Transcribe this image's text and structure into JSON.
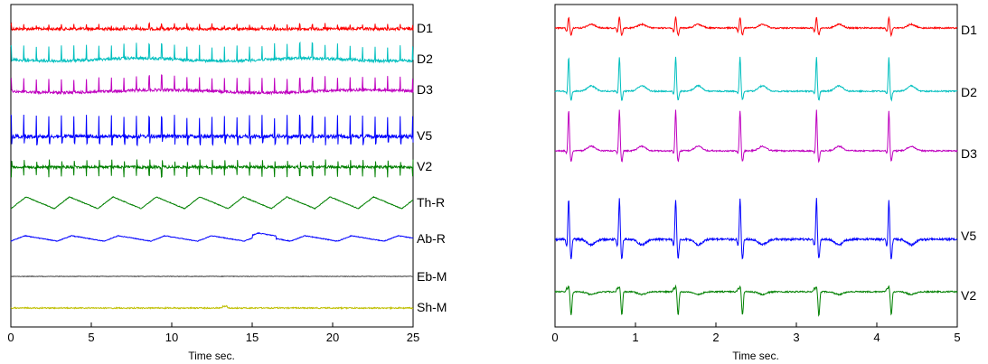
{
  "chart_data": [
    {
      "type": "line",
      "xlabel": "Time sec.",
      "xlim": [
        0,
        25
      ],
      "xticks": [
        0,
        5,
        10,
        15,
        20,
        25
      ],
      "grid": false,
      "series": [
        {
          "name": "D1",
          "color": "#ff0000"
        },
        {
          "name": "D2",
          "color": "#00bfbf"
        },
        {
          "name": "D3",
          "color": "#bf00bf"
        },
        {
          "name": "V5",
          "color": "#0000ff"
        },
        {
          "name": "V2",
          "color": "#008000"
        },
        {
          "name": "Th-R",
          "color": "#008000"
        },
        {
          "name": "Ab-R",
          "color": "#0000ff"
        },
        {
          "name": "Eb-M",
          "color": "#404040"
        },
        {
          "name": "Sh-M",
          "color": "#bfbf00"
        }
      ]
    },
    {
      "type": "line",
      "xlabel": "Time sec.",
      "xlim": [
        0,
        5
      ],
      "xticks": [
        0,
        1,
        2,
        3,
        4,
        5
      ],
      "grid": false,
      "beat_times": [
        0.17,
        0.8,
        1.5,
        2.3,
        3.25,
        4.15
      ],
      "series": [
        {
          "name": "D1",
          "color": "#ff0000"
        },
        {
          "name": "D2",
          "color": "#00bfbf"
        },
        {
          "name": "D3",
          "color": "#bf00bf"
        },
        {
          "name": "V5",
          "color": "#0000ff"
        },
        {
          "name": "V2",
          "color": "#008000"
        }
      ]
    }
  ]
}
